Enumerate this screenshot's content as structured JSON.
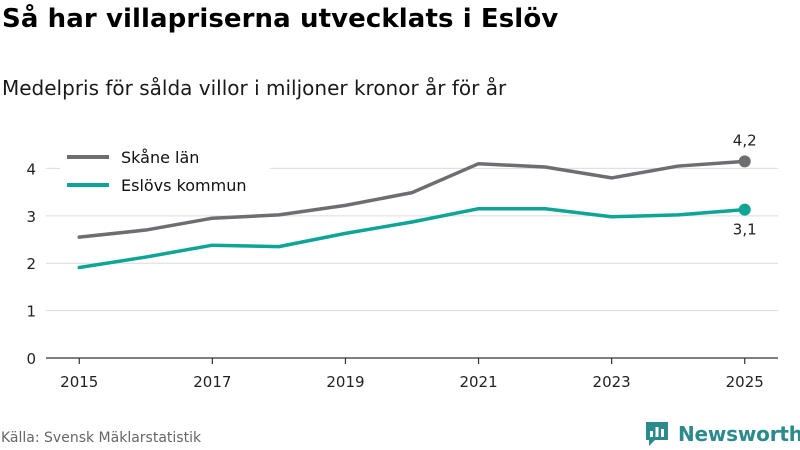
{
  "header": {
    "title": "Så har villapriserna utvecklats i Eslöv",
    "subtitle": "Medelpris för sålda villor i miljoner kronor år för år"
  },
  "footer": {
    "source": "Källa: Svensk Mäklarstatistik",
    "brand": "Newsworthy"
  },
  "colors": {
    "skane": "#6e6d72",
    "eslov": "#0ea597",
    "grid": "#dcdcdc",
    "axis": "#333333",
    "brand": "#2a8a8c"
  },
  "chart_data": {
    "type": "line",
    "title": "Så har villapriserna utvecklats i Eslöv",
    "subtitle": "Medelpris för sålda villor i miljoner kronor år för år",
    "xlabel": "",
    "ylabel": "",
    "x": [
      2015,
      2016,
      2017,
      2018,
      2019,
      2020,
      2021,
      2022,
      2023,
      2024,
      2025
    ],
    "xticks": [
      "2015",
      "2017",
      "2019",
      "2021",
      "2023",
      "2025"
    ],
    "yticks": [
      "0",
      "1",
      "2",
      "3",
      "4"
    ],
    "ylim": [
      0,
      4.6
    ],
    "xlim": [
      2014.5,
      2025.5
    ],
    "grid": true,
    "legend_position": "top-left",
    "series": [
      {
        "name": "Skåne län",
        "color": "#6e6d72",
        "values": [
          2.55,
          2.7,
          2.95,
          3.02,
          3.22,
          3.49,
          4.1,
          4.03,
          3.8,
          4.05,
          4.15
        ],
        "end_label": "4,2"
      },
      {
        "name": "Eslövs kommun",
        "color": "#0ea597",
        "values": [
          1.91,
          2.13,
          2.38,
          2.35,
          2.63,
          2.87,
          3.15,
          3.15,
          2.98,
          3.02,
          3.13
        ],
        "end_label": "3,1"
      }
    ]
  }
}
